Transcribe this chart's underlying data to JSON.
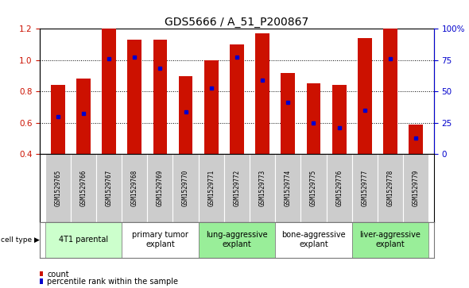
{
  "title": "GDS5666 / A_51_P200867",
  "samples": [
    "GSM1529765",
    "GSM1529766",
    "GSM1529767",
    "GSM1529768",
    "GSM1529769",
    "GSM1529770",
    "GSM1529771",
    "GSM1529772",
    "GSM1529773",
    "GSM1529774",
    "GSM1529775",
    "GSM1529776",
    "GSM1529777",
    "GSM1529778",
    "GSM1529779"
  ],
  "bar_heights": [
    0.84,
    0.88,
    1.2,
    1.13,
    1.13,
    0.9,
    1.0,
    1.1,
    1.17,
    0.92,
    0.85,
    0.84,
    1.14,
    1.2,
    0.59
  ],
  "percentile_values": [
    0.64,
    0.66,
    1.01,
    1.02,
    0.95,
    0.67,
    0.82,
    1.02,
    0.87,
    0.73,
    0.6,
    0.57,
    0.68,
    1.01,
    0.5
  ],
  "bar_color": "#cc1100",
  "marker_color": "#0000cc",
  "ylim": [
    0.4,
    1.2
  ],
  "yticks_left": [
    0.4,
    0.6,
    0.8,
    1.0,
    1.2
  ],
  "yticks_right": [
    0,
    25,
    50,
    75,
    100
  ],
  "groups": [
    {
      "label": "4T1 parental",
      "start": 0,
      "end": 3,
      "color": "#ccffcc"
    },
    {
      "label": "primary tumor\nexplant",
      "start": 3,
      "end": 6,
      "color": "#ffffff"
    },
    {
      "label": "lung-aggressive\nexplant",
      "start": 6,
      "end": 9,
      "color": "#99ee99"
    },
    {
      "label": "bone-aggressive\nexplant",
      "start": 9,
      "end": 12,
      "color": "#ffffff"
    },
    {
      "label": "liver-aggressive\nexplant",
      "start": 12,
      "end": 15,
      "color": "#99ee99"
    }
  ],
  "cell_type_label": "cell type",
  "legend_count_label": "count",
  "legend_percentile_label": "percentile rank within the sample",
  "bar_width": 0.55,
  "axis_bg_color": "#ffffff",
  "title_fontsize": 10,
  "tick_fontsize": 7.5,
  "sample_fontsize": 5.5,
  "group_fontsize": 7,
  "legend_fontsize": 7
}
